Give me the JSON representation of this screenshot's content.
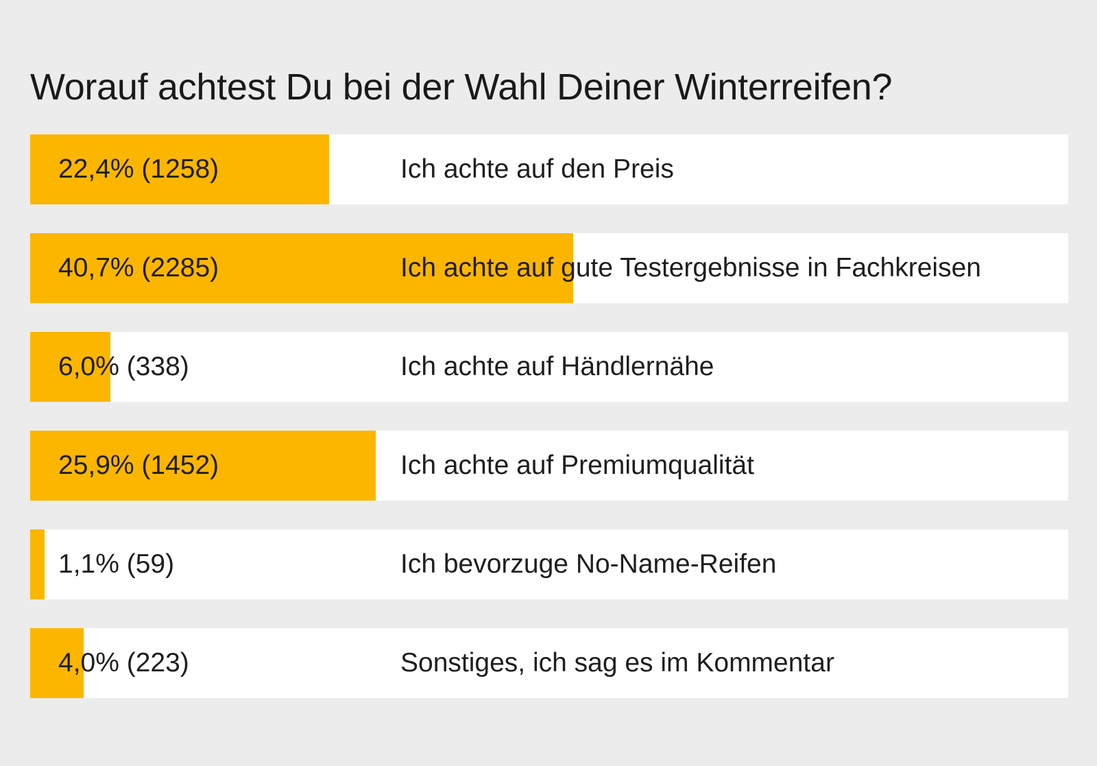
{
  "poll": {
    "title": "Worauf achtest Du bei der Wahl Deiner Winterreifen?"
  },
  "colors": {
    "background": "#ececec",
    "bar_track": "#ffffff",
    "bar_fill": "#fcb600",
    "text": "#1e1e1e"
  },
  "chart_data": {
    "type": "bar",
    "orientation": "horizontal",
    "title": "Worauf achtest Du bei der Wahl Deiner Winterreifen?",
    "categories": [
      "Ich achte auf den Preis",
      "Ich achte auf gute Testergebnisse in Fachkreisen",
      "Ich achte auf Händlernähe",
      "Ich achte auf Premiumqualität",
      "Ich bevorzuge No-Name-Reifen",
      "Sonstiges, ich sag es im Kommentar"
    ],
    "percent": [
      22.4,
      40.7,
      6.0,
      25.9,
      1.1,
      4.0
    ],
    "votes": [
      1258,
      2285,
      338,
      1452,
      59,
      223
    ],
    "value_labels": [
      "22,4% (1258)",
      "40,7% (2285)",
      "6,0% (338)",
      "25,9% (1452)",
      "1,1% (59)",
      "4,0% (223)"
    ],
    "xlim": [
      0,
      100
    ],
    "xlabel": "",
    "ylabel": "",
    "grid": false,
    "legend": "none"
  }
}
